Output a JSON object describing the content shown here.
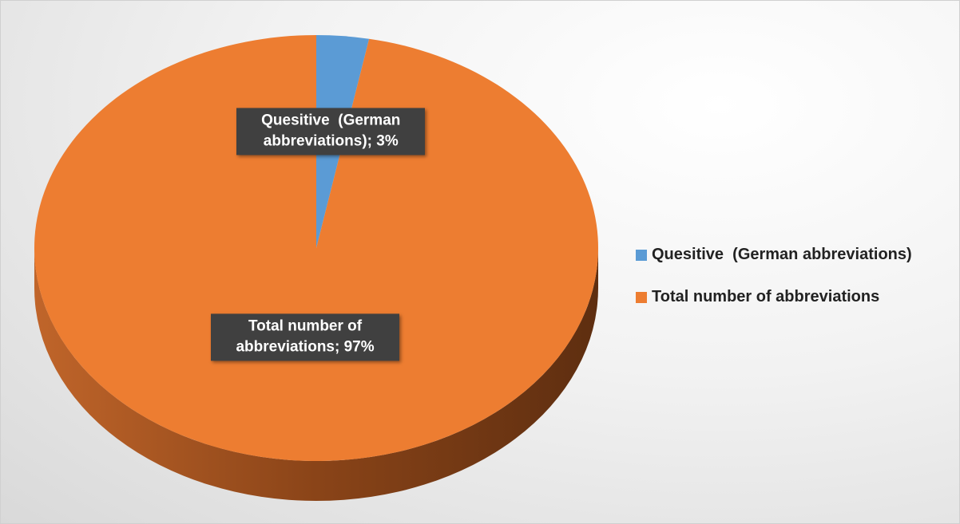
{
  "chart_data": {
    "type": "pie",
    "categories": [
      "Quesitive  (German abbreviations)",
      "Total number of abbreviations"
    ],
    "values": [
      3,
      97
    ],
    "value_labels": [
      "Quesitive  (German abbreviations); 3%",
      "Total number of abbreviations; 97%"
    ],
    "colors": [
      "#5b9bd5",
      "#ed7d31"
    ],
    "legend": "right"
  }
}
